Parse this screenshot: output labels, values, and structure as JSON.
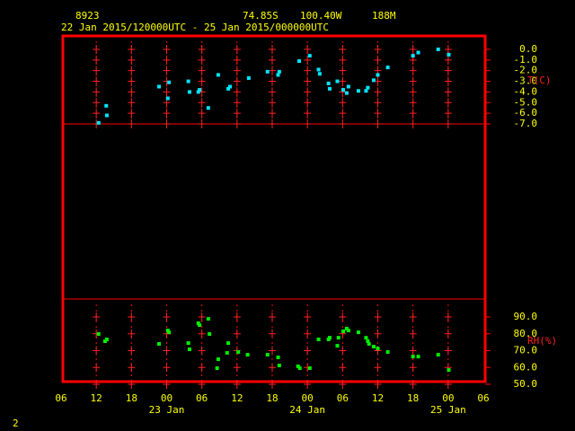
{
  "header": {
    "station": "8923",
    "lat": "74.85S",
    "lon": "100.40W",
    "elev": "188M",
    "period": "22 Jan 2015/120000UTC - 25 Jan 2015/000000UTC"
  },
  "footer": "2",
  "chart_data": [
    {
      "type": "scatter",
      "y_label": "T(C)",
      "color": "#00e5ff",
      "xlim": [
        0,
        72
      ],
      "ylim": [
        -7,
        1.26
      ],
      "yticks": [
        {
          "value": 0,
          "label": "0.0"
        },
        {
          "value": -1,
          "label": "-1.0"
        },
        {
          "value": -2,
          "label": "-2.0"
        },
        {
          "value": -3,
          "label": "-3.0"
        },
        {
          "value": -4,
          "label": "-4.0"
        },
        {
          "value": -5,
          "label": "-5.0"
        },
        {
          "value": -6,
          "label": "-6.0"
        },
        {
          "value": -7,
          "label": "-7.0"
        }
      ],
      "x": [
        6.4,
        7.7,
        7.8,
        16.7,
        18.4,
        18.2,
        21.7,
        21.9,
        23.4,
        23.6,
        25.1,
        26.8,
        28.5,
        28.8,
        32.0,
        35.2,
        37.0,
        37.2,
        40.6,
        42.4,
        43.9,
        44.1,
        45.6,
        45.8,
        47.1,
        48.1,
        48.7,
        49.0,
        50.7,
        52.0,
        52.3,
        53.3,
        54.0,
        55.7,
        60.0,
        60.9,
        64.3,
        66.1
      ],
      "values": [
        -6.9,
        -5.3,
        -6.2,
        -3.5,
        -3.1,
        -4.6,
        -3.0,
        -4.0,
        -4.0,
        -3.8,
        -5.5,
        -2.4,
        -3.7,
        -3.5,
        -2.7,
        -2.1,
        -2.4,
        -2.1,
        -1.1,
        -0.6,
        -1.9,
        -2.3,
        -3.2,
        -3.7,
        -3.0,
        -3.8,
        -4.1,
        -3.5,
        -3.9,
        -3.9,
        -3.6,
        -2.9,
        -2.4,
        -1.7,
        -0.6,
        -0.3,
        0.0,
        -0.5
      ]
    },
    {
      "type": "scatter",
      "y_label": "RH(%)",
      "color": "#00ee00",
      "xlim": [
        0,
        72
      ],
      "ylim": [
        50,
        100.7
      ],
      "yticks": [
        {
          "value": 90,
          "label": "90.0"
        },
        {
          "value": 80,
          "label": "80.0"
        },
        {
          "value": 70,
          "label": "70.0"
        },
        {
          "value": 60,
          "label": "60.0"
        },
        {
          "value": 50,
          "label": "50.0"
        }
      ],
      "xticks": [
        {
          "value": 0,
          "label": "06"
        },
        {
          "value": 6,
          "label": "12"
        },
        {
          "value": 12,
          "label": "18"
        },
        {
          "value": 18,
          "label": "00"
        },
        {
          "value": 24,
          "label": "06"
        },
        {
          "value": 30,
          "label": "12"
        },
        {
          "value": 36,
          "label": "18"
        },
        {
          "value": 42,
          "label": "00"
        },
        {
          "value": 48,
          "label": "06"
        },
        {
          "value": 54,
          "label": "12"
        },
        {
          "value": 60,
          "label": "18"
        },
        {
          "value": 66,
          "label": "00"
        },
        {
          "value": 72,
          "label": "06"
        }
      ],
      "day_labels": [
        {
          "value": 18,
          "label": "23 Jan"
        },
        {
          "value": 42,
          "label": "24 Jan"
        },
        {
          "value": 66,
          "label": "25 Jan"
        }
      ],
      "x": [
        6.4,
        7.5,
        7.8,
        16.7,
        18.2,
        18.4,
        21.7,
        21.9,
        23.4,
        23.6,
        25.1,
        25.3,
        26.8,
        26.6,
        28.5,
        28.3,
        30.2,
        31.8,
        35.2,
        37.0,
        37.2,
        40.4,
        40.7,
        42.4,
        43.9,
        45.6,
        45.8,
        47.1,
        47.3,
        48.1,
        48.7,
        49.0,
        50.7,
        52.0,
        52.3,
        52.5,
        53.3,
        54.0,
        55.7,
        60.0,
        60.9,
        64.3,
        66.1
      ],
      "values": [
        79.9,
        75.6,
        76.7,
        74.0,
        82.0,
        80.9,
        74.5,
        70.8,
        86.3,
        85.2,
        88.9,
        79.9,
        64.9,
        59.6,
        74.5,
        68.7,
        69.2,
        67.6,
        67.6,
        66.0,
        61.2,
        60.7,
        59.6,
        59.6,
        76.7,
        76.7,
        77.7,
        72.9,
        77.7,
        81.5,
        83.1,
        82.0,
        80.9,
        77.7,
        75.6,
        74.0,
        72.4,
        71.3,
        69.2,
        66.5,
        66.5,
        67.6,
        58.5
      ]
    }
  ]
}
